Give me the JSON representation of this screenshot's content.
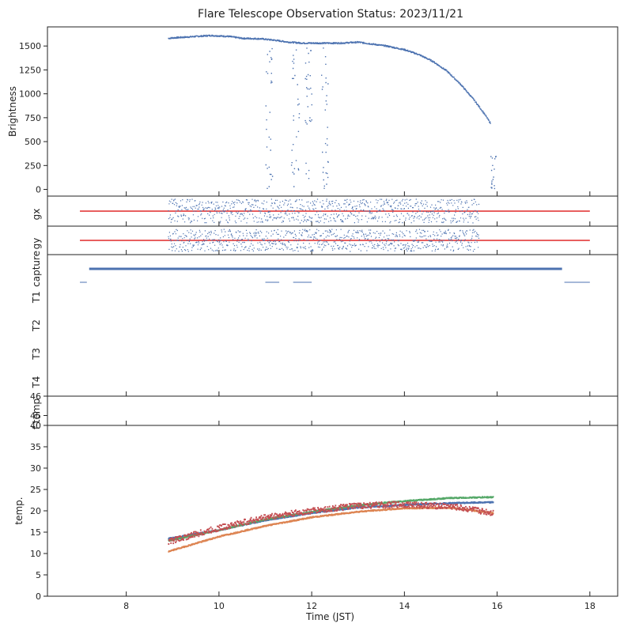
{
  "figure": {
    "title": "Flare Telescope Observation Status: 2023/11/21"
  },
  "colors": {
    "blue": "#4c72b0",
    "orange": "#dd8452",
    "green": "#55a868",
    "red": "#c44e52",
    "refline": "#e02a2a"
  },
  "chart_data": [
    {
      "id": "brightness",
      "type": "scatter",
      "ylabel": "Brightness",
      "xlim": [
        6.3,
        18.6
      ],
      "ylim": [
        -70,
        1700
      ],
      "yticks": [
        "0",
        "250",
        "500",
        "750",
        "1000",
        "1250",
        "1500"
      ],
      "xticks": [
        "8",
        "10",
        "12",
        "14",
        "16",
        "18"
      ],
      "series": [
        {
          "color": "blue",
          "x": [
            8.9,
            9.0,
            9.5,
            9.8,
            10.2,
            10.5,
            10.9,
            11.2,
            11.5,
            11.8,
            12.2,
            12.6,
            13.0,
            13.3,
            13.6,
            14.0,
            14.3,
            14.6,
            14.9,
            15.2,
            15.5,
            15.7,
            15.85
          ],
          "y": [
            1580,
            1585,
            1600,
            1610,
            1600,
            1580,
            1575,
            1560,
            1540,
            1530,
            1530,
            1530,
            1540,
            1520,
            1500,
            1460,
            1410,
            1340,
            1240,
            1100,
            930,
            800,
            690
          ]
        }
      ]
    },
    {
      "id": "gx",
      "type": "scatter",
      "ylabel": "gx",
      "xlim": [
        6.3,
        18.6
      ],
      "reference_line": {
        "x": [
          7.0,
          18.0
        ]
      },
      "series": [
        {
          "color": "blue",
          "x": [
            8.9,
            15.6
          ]
        }
      ]
    },
    {
      "id": "gy",
      "type": "scatter",
      "ylabel": "gy",
      "xlim": [
        6.3,
        18.6
      ],
      "reference_line": {
        "x": [
          7.0,
          18.0
        ]
      },
      "series": [
        {
          "color": "blue",
          "x": [
            8.9,
            15.6
          ]
        }
      ]
    },
    {
      "id": "status",
      "type": "line",
      "xlim": [
        6.3,
        18.6
      ],
      "ylabels": [
        "capture",
        "T1",
        "T2",
        "T3",
        "T4"
      ],
      "capture_interval": [
        7.2,
        17.4
      ],
      "t1_marks": [
        [
          7.0,
          7.15
        ],
        [
          17.45,
          18.0
        ],
        [
          11.0,
          11.3
        ],
        [
          11.6,
          12.0
        ]
      ]
    },
    {
      "id": "ftemp",
      "type": "line",
      "ylabel": "f-temp",
      "xlim": [
        6.3,
        18.6
      ],
      "ylim": [
        40,
        46
      ],
      "yticks": [
        "46",
        "45",
        "40"
      ]
    },
    {
      "id": "temp",
      "type": "scatter",
      "ylabel": "temp.",
      "xlabel": "Time (JST)",
      "xlim": [
        6.3,
        18.6
      ],
      "ylim": [
        0,
        40
      ],
      "yticks": [
        "0",
        "5",
        "10",
        "15",
        "20",
        "25",
        "30",
        "35"
      ],
      "xticks": [
        "8",
        "10",
        "12",
        "14",
        "16",
        "18"
      ],
      "series": [
        {
          "color": "blue",
          "x": [
            8.9,
            10,
            11,
            12,
            13,
            14,
            15,
            15.9
          ],
          "y": [
            13.5,
            15.5,
            17.8,
            19.5,
            20.8,
            21.4,
            21.8,
            22.0
          ]
        },
        {
          "color": "orange",
          "x": [
            8.9,
            10,
            11,
            12,
            13,
            14,
            15,
            15.9
          ],
          "y": [
            10.5,
            14.0,
            16.5,
            18.5,
            19.8,
            20.6,
            20.7,
            19.5
          ]
        },
        {
          "color": "green",
          "x": [
            8.9,
            10,
            11,
            12,
            13,
            14,
            15,
            15.9
          ],
          "y": [
            13.0,
            15.5,
            18.0,
            19.8,
            21.3,
            22.3,
            23.0,
            23.2
          ]
        },
        {
          "color": "red",
          "x": [
            8.9,
            10,
            11,
            12,
            13,
            14,
            15,
            15.9
          ],
          "y": [
            12.8,
            16.0,
            18.5,
            20.0,
            21.2,
            21.5,
            21.0,
            19.5
          ]
        }
      ]
    }
  ]
}
